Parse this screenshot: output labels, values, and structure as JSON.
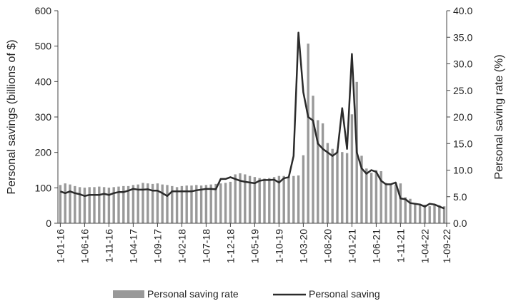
{
  "chart_data": {
    "type": "bar",
    "y_left": {
      "label": "Personal savings (billions of $)",
      "range": [
        0,
        600
      ],
      "ticks": [
        0,
        100,
        200,
        300,
        400,
        500,
        600
      ],
      "tick_labels": [
        "0",
        "100",
        "200",
        "300",
        "400",
        "500",
        "600"
      ]
    },
    "y_right": {
      "label": "Personal saving rate (%)",
      "range": [
        0,
        40
      ],
      "ticks": [
        0,
        5,
        10,
        15,
        20,
        25,
        30,
        35,
        40
      ],
      "tick_labels": [
        "0.0",
        "5.0",
        "10.0",
        "15.0",
        "20.0",
        "25.0",
        "30.0",
        "35.0",
        "40.0"
      ]
    },
    "x_tick_labels": [
      "1-01-16",
      "1-06-16",
      "1-11-16",
      "1-04-17",
      "1-09-17",
      "1-02-18",
      "1-07-18",
      "1-12-18",
      "1-05-19",
      "1-10-19",
      "1-03-20",
      "1-08-20",
      "1-01-21",
      "1-06-21",
      "1-11-21",
      "1-04-22",
      "1-09-22"
    ],
    "x_tick_every": 5,
    "series": [
      {
        "name": "Personal saving rate",
        "type": "bar",
        "axis": "right",
        "color": "#999999",
        "values": [
          7.2,
          7.5,
          7.3,
          7.0,
          6.8,
          6.7,
          6.8,
          6.8,
          6.9,
          6.8,
          6.7,
          6.8,
          6.9,
          7.0,
          7.0,
          7.2,
          7.3,
          7.6,
          7.5,
          7.4,
          7.5,
          7.3,
          7.2,
          7.0,
          6.8,
          7.0,
          7.1,
          7.1,
          7.2,
          7.1,
          7.2,
          7.3,
          7.4,
          7.5,
          7.6,
          7.8,
          9.2,
          9.4,
          9.2,
          8.9,
          8.7,
          8.5,
          8.4,
          8.5,
          8.7,
          8.9,
          8.9,
          8.7,
          8.9,
          9.0,
          12.8,
          33.8,
          24.0,
          19.4,
          18.8,
          15.1,
          14.0,
          13.7,
          13.4,
          13.2,
          20.5,
          26.6,
          12.7,
          10.3,
          9.5,
          10.0,
          9.8,
          7.6,
          7.4,
          7.3,
          7.5,
          4.9,
          4.6,
          3.8,
          3.6,
          3.5,
          3.2,
          3.4,
          3.4,
          3.2
        ],
        "legend_entry": "Personal saving rate"
      },
      {
        "name": "Personal saving",
        "type": "line",
        "axis": "left",
        "color": "#2b2b2b",
        "values": [
          90,
          85,
          90,
          85,
          82,
          77,
          80,
          80,
          80,
          83,
          80,
          85,
          88,
          88,
          92,
          97,
          95,
          95,
          96,
          92,
          92,
          85,
          77,
          90,
          90,
          90,
          90,
          90,
          93,
          95,
          97,
          97,
          96,
          125,
          125,
          130,
          125,
          120,
          117,
          115,
          113,
          120,
          122,
          122,
          123,
          115,
          127,
          130,
          190,
          538,
          370,
          300,
          290,
          225,
          210,
          200,
          190,
          200,
          325,
          210,
          478,
          200,
          155,
          140,
          150,
          145,
          120,
          110,
          110,
          115,
          70,
          68,
          57,
          55,
          53,
          47,
          55,
          53,
          47,
          42
        ],
        "legend_entry": "Personal saving"
      }
    ],
    "grid": false,
    "legend_position": "bottom"
  }
}
